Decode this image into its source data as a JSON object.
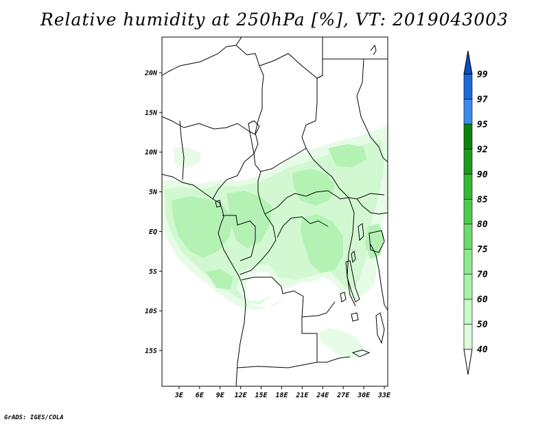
{
  "title": "Relative humidity at 250hPa [%], VT: 2019043003",
  "credit": "GrADS: IGES/COLA",
  "map": {
    "lat_range": [
      -19.5,
      24.5
    ],
    "lon_range": [
      0.5,
      33.5
    ],
    "lat_ticks": [
      {
        "value": 20,
        "label": "20N"
      },
      {
        "value": 15,
        "label": "15N"
      },
      {
        "value": 10,
        "label": "10N"
      },
      {
        "value": 5,
        "label": "5N"
      },
      {
        "value": 0,
        "label": "EQ"
      },
      {
        "value": -5,
        "label": "5S"
      },
      {
        "value": -10,
        "label": "10S"
      },
      {
        "value": -15,
        "label": "15S"
      }
    ],
    "lon_ticks": [
      {
        "value": 3,
        "label": "3E"
      },
      {
        "value": 6,
        "label": "6E"
      },
      {
        "value": 9,
        "label": "9E"
      },
      {
        "value": 12,
        "label": "12E"
      },
      {
        "value": 15,
        "label": "15E"
      },
      {
        "value": 18,
        "label": "18E"
      },
      {
        "value": 21,
        "label": "21E"
      },
      {
        "value": 24,
        "label": "24E"
      },
      {
        "value": 27,
        "label": "27E"
      },
      {
        "value": 30,
        "label": "30E"
      },
      {
        "value": 33,
        "label": "33E"
      }
    ]
  },
  "colorbar": {
    "levels": [
      "40",
      "50",
      "60",
      "70",
      "75",
      "80",
      "85",
      "90",
      "92",
      "95",
      "97",
      "99"
    ],
    "colors": [
      "#f0fef0",
      "#dcfcdc",
      "#c8f8c8",
      "#a8f2a8",
      "#8eea8e",
      "#6cdc6c",
      "#4ccc4c",
      "#34b834",
      "#1c9c1c",
      "#0c840c",
      "#3c8ce8",
      "#1c6ad8",
      "#0a4cc4"
    ]
  },
  "colors": {
    "rh_40_50": "#e6fce6",
    "rh_50_60": "#d2f8d2",
    "rh_60_70": "#b4f2b4",
    "coast": "#000000"
  }
}
